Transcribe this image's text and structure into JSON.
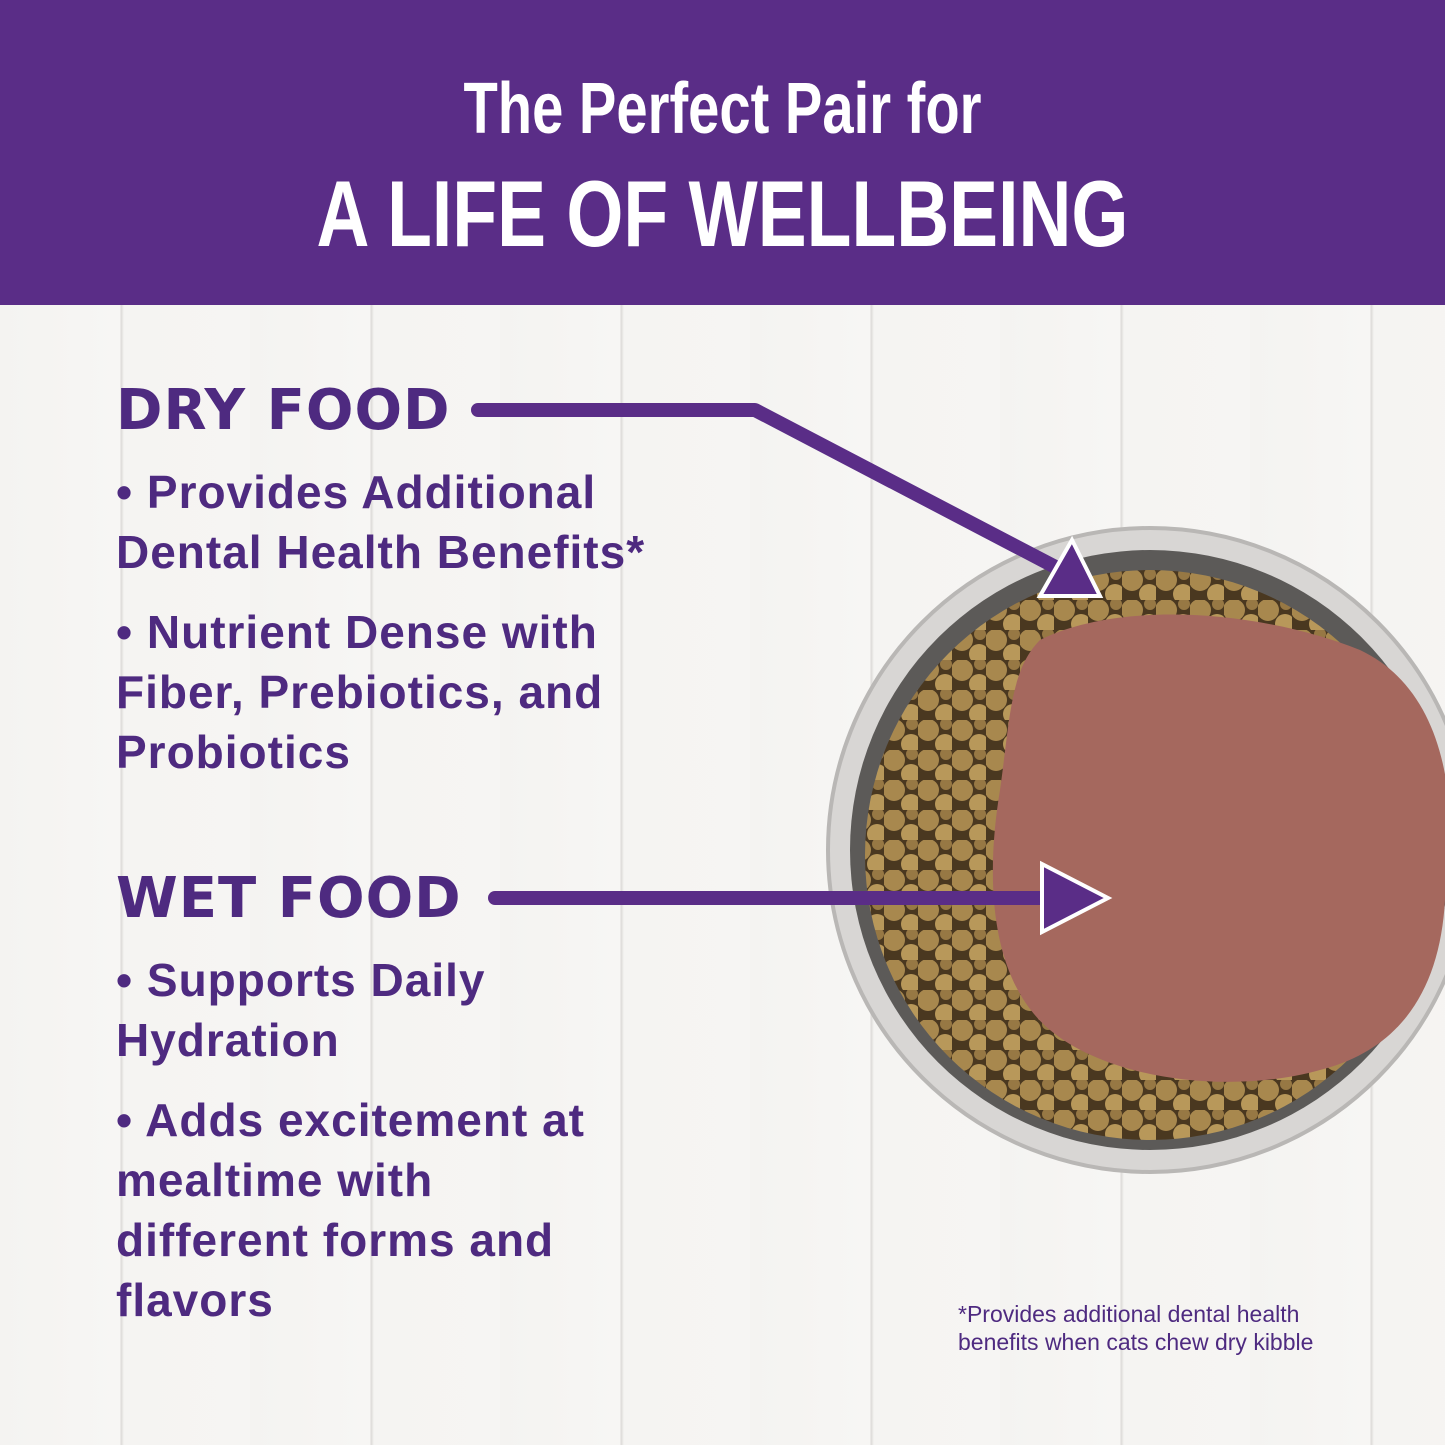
{
  "header": {
    "line1": "The Perfect Pair for",
    "line2": "A LIFE OF WELLBEING"
  },
  "dry": {
    "title": "DRY FOOD",
    "bullets": [
      "• Provides Additional Dental Health Benefits*",
      "• Nutrient Dense with Fiber, Prebiotics, and Probiotics"
    ]
  },
  "wet": {
    "title": "WET FOOD",
    "bullets": [
      "• Supports Daily Hydration",
      "• Adds excitement at mealtime with different forms and flavors"
    ]
  },
  "footnote": {
    "line1": "*Provides additional dental health",
    "line2": "benefits when cats chew dry kibble"
  },
  "colors": {
    "brand_purple": "#5a2d87",
    "text_purple": "#4e2a80"
  }
}
